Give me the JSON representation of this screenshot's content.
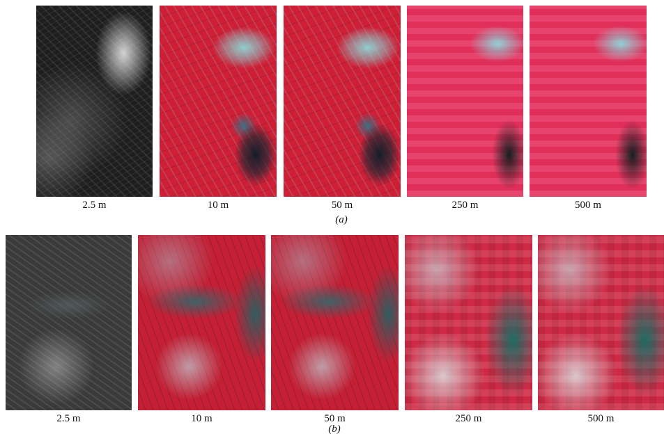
{
  "panels": [
    {
      "label": "(a)",
      "images": [
        {
          "caption": "2.5 m"
        },
        {
          "caption": "10 m"
        },
        {
          "caption": "50 m"
        },
        {
          "caption": "250 m"
        },
        {
          "caption": "500 m"
        }
      ]
    },
    {
      "label": "(b)",
      "images": [
        {
          "caption": "2.5 m"
        },
        {
          "caption": "10 m"
        },
        {
          "caption": "50 m"
        },
        {
          "caption": "250 m"
        },
        {
          "caption": "500 m"
        }
      ]
    }
  ]
}
